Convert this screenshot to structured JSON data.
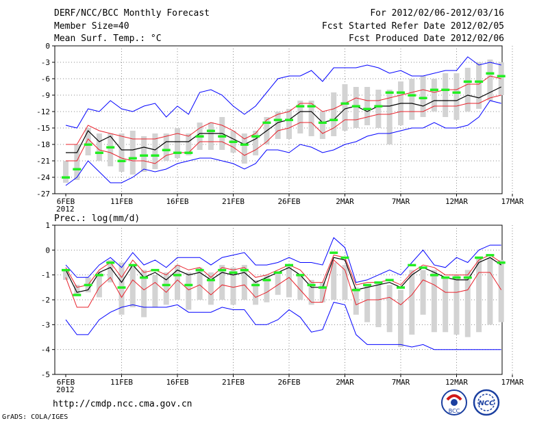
{
  "header": {
    "title": "DERF/NCC/BCC Monthly Forecast",
    "member_size": "Member Size=40",
    "var_label": "Mean Surf. Temp.: °C",
    "period": "For 2012/02/06-2012/03/16",
    "started": "Fcst Started Refer Date 2012/02/05",
    "produced": "Fcst Produced Date 2012/02/06"
  },
  "footer": {
    "url": "http://cmdp.ncc.cma.gov.cn",
    "credit": "GrADS: COLA/IGES"
  },
  "logos": {
    "bcc": "BCC",
    "ncc": "NCC"
  },
  "colors": {
    "bar": "#d3d3d3",
    "mean": "#000000",
    "inner": "#e8202a",
    "outer": "#0000ff",
    "green": "#22ee22",
    "grid": "#888888"
  },
  "chart_data": [
    {
      "type": "line",
      "title": "Mean Surf. Temp.: °C",
      "x_tick_labels": [
        "6FEB",
        "11FEB",
        "16FEB",
        "21FEB",
        "26FEB",
        "2MAR",
        "7MAR",
        "12MAR",
        "17MAR"
      ],
      "x_year_label": "2012",
      "ylim": [
        -27,
        0
      ],
      "y_ticks": [
        0,
        -3,
        -6,
        -9,
        -12,
        -15,
        -18,
        -21,
        -24,
        -27
      ],
      "days": 40,
      "series": [
        {
          "name": "ensemble_mean",
          "values": [
            -19.5,
            -19.5,
            -15.5,
            -17.5,
            -16.5,
            -19,
            -19,
            -18.5,
            -19,
            -17.5,
            -17.5,
            -17.5,
            -16,
            -16,
            -16,
            -17,
            -18,
            -17,
            -15.5,
            -14,
            -13.5,
            -12,
            -12,
            -14,
            -13.5,
            -11.5,
            -11,
            -12,
            -11,
            -11,
            -10.5,
            -10.5,
            -11,
            -10,
            -10,
            -10,
            -9,
            -9.5,
            -8.5,
            -7.5
          ]
        },
        {
          "name": "upper_spread",
          "values": [
            -18,
            -18,
            -14.5,
            -15.5,
            -16,
            -16.5,
            -17,
            -17,
            -17,
            -16.5,
            -16,
            -16.5,
            -15,
            -14,
            -14.5,
            -15.5,
            -17,
            -16,
            -13.5,
            -12.5,
            -12,
            -10.5,
            -10.5,
            -12,
            -11.5,
            -10.5,
            -9.5,
            -10,
            -10,
            -9.5,
            -9,
            -8.5,
            -8,
            -8.5,
            -8,
            -8,
            -7,
            -7,
            -5.5,
            -6
          ]
        },
        {
          "name": "lower_spread",
          "values": [
            -21,
            -21,
            -17,
            -19,
            -19.5,
            -20.5,
            -21,
            -21,
            -21.5,
            -20,
            -19.5,
            -19.5,
            -17.5,
            -17.5,
            -17.5,
            -18.5,
            -20,
            -19,
            -17.5,
            -15.5,
            -15,
            -14,
            -14,
            -16,
            -15,
            -13.5,
            -13.5,
            -13,
            -12.5,
            -12.5,
            -12,
            -12,
            -12,
            -11,
            -11,
            -11,
            -10.5,
            -10.5,
            -9.5,
            -9
          ]
        },
        {
          "name": "max_envelope",
          "values": [
            -14.5,
            -15,
            -11.5,
            -12,
            -10,
            -11.5,
            -12,
            -11,
            -10.5,
            -13,
            -11,
            -12.5,
            -8.5,
            -8,
            -9,
            -11,
            -12.5,
            -11,
            -8.5,
            -6,
            -5.5,
            -5.5,
            -4.5,
            -6.5,
            -4,
            -4,
            -4,
            -3.5,
            -4,
            -5,
            -4.5,
            -5.5,
            -5.5,
            -5,
            -4.5,
            -4.5,
            -2,
            -3.5,
            -3,
            -3.5
          ]
        },
        {
          "name": "min_envelope",
          "values": [
            -25.5,
            -24,
            -21,
            -23,
            -25,
            -25,
            -24,
            -22.5,
            -23,
            -22.5,
            -21.5,
            -21,
            -20.5,
            -20.5,
            -21,
            -21.5,
            -22.5,
            -21.5,
            -19,
            -19,
            -19.5,
            -18,
            -18.5,
            -19.5,
            -19,
            -18,
            -17.5,
            -16.5,
            -16,
            -16,
            -15.5,
            -15,
            -15,
            -14,
            -15,
            -15,
            -14.5,
            -13,
            -10,
            -10.5
          ]
        },
        {
          "name": "observed_green",
          "values": [
            -24,
            -22.5,
            -18,
            -19.5,
            -18.5,
            -21,
            -20.5,
            -20,
            -20,
            -19,
            -19.5,
            -19.5,
            -16.5,
            -15.5,
            -16.5,
            -17.5,
            -18,
            -16.5,
            -14,
            -13.5,
            -13.5,
            -11,
            -11,
            -14,
            -13.5,
            -10.5,
            -11,
            -11.5,
            -11,
            -8.5,
            -8.5,
            -9,
            -9.5,
            -8,
            -8,
            -8.5,
            -6.5,
            -6.5,
            -5,
            -5.5
          ]
        },
        {
          "name": "bar_top",
          "values": [
            -21,
            -18,
            -15,
            -16,
            -16,
            -16,
            -15.5,
            -16.5,
            -16,
            -16,
            -15,
            -16,
            -14,
            -14,
            -13,
            -15.5,
            -16,
            -15.5,
            -13,
            -12,
            -11.5,
            -10,
            -10,
            -12,
            -8.5,
            -7,
            -7.5,
            -7.5,
            -8,
            -8,
            -6.5,
            -6,
            -5.5,
            -6,
            -5,
            -5,
            -4,
            -3,
            -2.5,
            -3
          ]
        },
        {
          "name": "bar_bottom",
          "values": [
            -25,
            -24.5,
            -20,
            -21,
            -22,
            -23,
            -23.5,
            -23,
            -22.5,
            -21,
            -20.5,
            -20,
            -19,
            -19,
            -19,
            -19.5,
            -21.5,
            -20,
            -18,
            -17,
            -17,
            -16,
            -16.5,
            -17,
            -16.5,
            -15.5,
            -15,
            -14.5,
            -15,
            -18,
            -14.5,
            -13.5,
            -13,
            -12,
            -13,
            -13.5,
            -12,
            -11.5,
            -10,
            -9
          ]
        }
      ]
    },
    {
      "type": "line",
      "title": "Prec.: log(mm/d)",
      "x_tick_labels": [
        "6FEB",
        "11FEB",
        "16FEB",
        "21FEB",
        "26FEB",
        "2MAR",
        "7MAR",
        "12MAR",
        "17MAR"
      ],
      "x_year_label": "2012",
      "ylim": [
        -5,
        1
      ],
      "y_ticks": [
        1,
        0,
        -1,
        -2,
        -3,
        -4,
        -5
      ],
      "days": 40,
      "series": [
        {
          "name": "ensemble_mean",
          "values": [
            -0.8,
            -1.7,
            -1.6,
            -0.9,
            -0.7,
            -1.3,
            -0.6,
            -1.1,
            -0.9,
            -1.2,
            -0.8,
            -1,
            -0.9,
            -1.2,
            -0.9,
            -1,
            -0.9,
            -1.3,
            -1.1,
            -0.9,
            -0.7,
            -1,
            -1.5,
            -1.5,
            -0.3,
            -0.4,
            -1.6,
            -1.5,
            -1.4,
            -1.3,
            -1.5,
            -1,
            -0.7,
            -0.9,
            -1.1,
            -1.2,
            -1.2,
            -0.5,
            -0.3,
            -0.6
          ]
        },
        {
          "name": "upper_spread",
          "values": [
            -0.7,
            -1.5,
            -1.4,
            -0.8,
            -0.5,
            -1.1,
            -0.4,
            -0.9,
            -0.8,
            -1,
            -0.6,
            -0.8,
            -0.7,
            -1.1,
            -0.7,
            -0.8,
            -0.7,
            -1.1,
            -1,
            -0.8,
            -0.6,
            -0.8,
            -1.3,
            -1.3,
            -0.2,
            -0.3,
            -1.4,
            -1.3,
            -1.3,
            -1.2,
            -1.4,
            -0.9,
            -0.6,
            -0.7,
            -1,
            -1,
            -1,
            -0.4,
            -0.2,
            -0.5
          ]
        },
        {
          "name": "lower_spread",
          "values": [
            -1.1,
            -2.3,
            -2.3,
            -1.5,
            -1.1,
            -1.9,
            -1.2,
            -1.6,
            -1.3,
            -1.7,
            -1.2,
            -1.6,
            -1.4,
            -1.8,
            -1.4,
            -1.5,
            -1.4,
            -1.9,
            -1.7,
            -1.4,
            -1.1,
            -1.6,
            -2.1,
            -2.1,
            -0.4,
            -0.8,
            -2.2,
            -2,
            -2,
            -1.9,
            -2.2,
            -1.8,
            -1.2,
            -1.4,
            -1.7,
            -1.7,
            -1.6,
            -0.9,
            -0.9,
            -1.6
          ]
        },
        {
          "name": "max_envelope",
          "values": [
            -0.6,
            -1.1,
            -1.1,
            -0.6,
            -0.3,
            -0.7,
            -0.1,
            -0.6,
            -0.4,
            -0.7,
            -0.3,
            -0.3,
            -0.3,
            -0.6,
            -0.3,
            -0.2,
            -0.1,
            -0.6,
            -0.6,
            -0.5,
            -0.3,
            -0.5,
            -0.5,
            -0.6,
            0.5,
            0.1,
            -1.3,
            -1.2,
            -1,
            -0.8,
            -1,
            -0.5,
            0,
            -0.6,
            -0.7,
            -0.3,
            -0.5,
            0,
            0.2,
            0.2
          ]
        },
        {
          "name": "min_envelope",
          "values": [
            -2.8,
            -3.4,
            -3.4,
            -2.8,
            -2.5,
            -2.3,
            -2.2,
            -2.3,
            -2.3,
            -2.3,
            -2.2,
            -2.5,
            -2.5,
            -2.5,
            -2.3,
            -2.4,
            -2.4,
            -3,
            -3,
            -2.8,
            -2.4,
            -2.7,
            -3.3,
            -3.2,
            -2.1,
            -2.2,
            -3.4,
            -3.8,
            -3.8,
            -3.8,
            -3.8,
            -3.9,
            -3.8,
            -4,
            -4,
            -4,
            -4,
            -4,
            -4,
            -4
          ]
        },
        {
          "name": "observed_green",
          "values": [
            -0.8,
            -1.8,
            -1.4,
            -1,
            -0.5,
            -1.5,
            -0.6,
            -1.1,
            -0.8,
            -1.4,
            -1,
            -1.4,
            -0.8,
            -1.2,
            -0.8,
            -0.9,
            -0.8,
            -1.4,
            -1.2,
            -0.9,
            -0.6,
            -1,
            -1.4,
            -1.5,
            -0.1,
            -0.3,
            -1.6,
            -1.4,
            -1.3,
            -1.2,
            -1.5,
            -0.6,
            -0.7,
            -1,
            -1.1,
            -1.1,
            -1.1,
            -0.3,
            -0.2,
            -0.5
          ]
        },
        {
          "name": "bar_top",
          "values": [
            -0.8,
            -1.4,
            -1.1,
            -0.9,
            -0.4,
            -0.5,
            -0.6,
            -0.8,
            -1,
            -0.9,
            -0.6,
            -0.9,
            -0.7,
            -0.9,
            -0.6,
            -0.7,
            -0.6,
            -1.2,
            -1,
            -0.9,
            -0.6,
            -1,
            -1.2,
            -1.3,
            -0.5,
            -0.6,
            -1.5,
            -1.4,
            -1.3,
            -1.4,
            -1.6,
            -0.8,
            -0.8,
            -0.8,
            -1.1,
            -1,
            -0.8,
            -0.3,
            -0.3,
            -0.4
          ]
        },
        {
          "name": "bar_bottom",
          "values": [
            -1.2,
            -1.8,
            -1.7,
            -1.9,
            -1.3,
            -2.6,
            -2.3,
            -2.7,
            -2.3,
            -2.2,
            -2,
            -2.4,
            -2,
            -2.2,
            -2,
            -2.2,
            -2,
            -2.2,
            -2.1,
            -1.8,
            -1.9,
            -2,
            -2.2,
            -2.1,
            -2,
            -2,
            -2.6,
            -2.9,
            -3.1,
            -3.3,
            -3.9,
            -3.4,
            -2.6,
            -3.3,
            -3.3,
            -3.4,
            -3.5,
            -3.3,
            -3,
            -2.9
          ]
        }
      ]
    }
  ]
}
